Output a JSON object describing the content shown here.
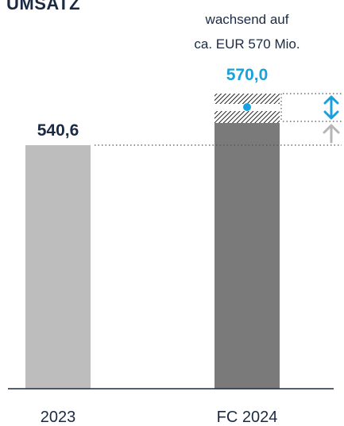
{
  "chart_data": {
    "type": "bar",
    "title": "UMSATZ",
    "categories": [
      "2023",
      "FC 2024"
    ],
    "values": [
      540.6,
      570.0
    ],
    "value_labels": [
      "540,6",
      "570,0"
    ],
    "ylim": [
      0,
      600
    ],
    "grid": false,
    "annotation": {
      "lines": [
        "wachsend auf",
        "ca. EUR 570 Mio."
      ],
      "forecast_range_low": 540.6,
      "forecast_range_high": 570.0,
      "forecast_point": 570.0
    }
  },
  "colors": {
    "bar_2023": "#bdbdbd",
    "bar_fc2024": "#7a7a7a",
    "accent": "#1aa0dc",
    "text": "#1b2a44",
    "gray_arrow": "#b5b5b5",
    "axis": "#1b2a44"
  },
  "icons": [
    "double-arrow-icon",
    "up-arrow-icon"
  ]
}
